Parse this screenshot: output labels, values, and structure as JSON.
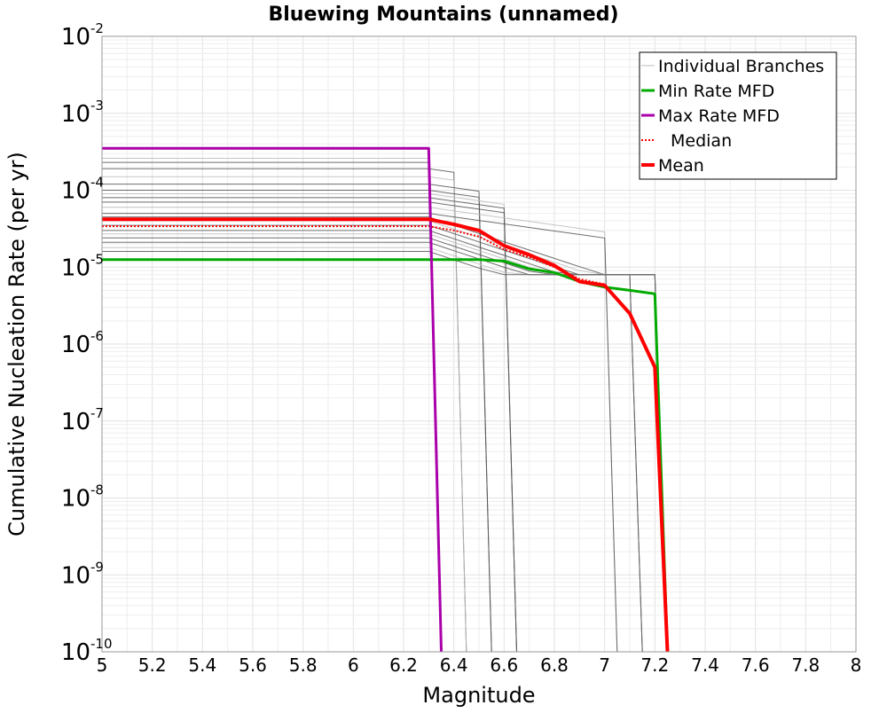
{
  "chart_data": {
    "type": "line",
    "title": "Bluewing Mountains (unnamed)",
    "xlabel": "Magnitude",
    "ylabel": "Cumulative Nucleation Rate (per yr)",
    "xlim": [
      5,
      8
    ],
    "ylim": [
      1e-10,
      0.01
    ],
    "yscale": "log",
    "grid": true,
    "legend_position": "top-right",
    "x_ticks": [
      "5",
      "5.2",
      "5.4",
      "5.6",
      "5.8",
      "6",
      "6.2",
      "6.4",
      "6.6",
      "6.8",
      "7",
      "7.2",
      "7.4",
      "7.6",
      "7.8",
      "8"
    ],
    "y_ticks": [
      {
        "base": "10",
        "exp": "-2"
      },
      {
        "base": "10",
        "exp": "-3"
      },
      {
        "base": "10",
        "exp": "-4"
      },
      {
        "base": "10",
        "exp": "-5"
      },
      {
        "base": "10",
        "exp": "-6"
      },
      {
        "base": "10",
        "exp": "-7"
      },
      {
        "base": "10",
        "exp": "-8"
      },
      {
        "base": "10",
        "exp": "-9"
      },
      {
        "base": "10",
        "exp": "-10"
      }
    ],
    "series": [
      {
        "name": "Individual Branches",
        "color": "#444444",
        "style": "thin",
        "note_values_estimated": true,
        "branches": [
          {
            "rate": 0.00026,
            "mmax": 6.3
          },
          {
            "rate": 0.00023,
            "mmax": 6.3
          },
          {
            "rate": 0.00019,
            "mmax": 6.4
          },
          {
            "rate": 0.00015,
            "mmax": 6.4
          },
          {
            "rate": 0.00012,
            "mmax": 6.5
          },
          {
            "rate": 0.0001,
            "mmax": 6.5
          },
          {
            "rate": 9e-05,
            "mmax": 6.6
          },
          {
            "rate": 8e-05,
            "mmax": 6.6
          },
          {
            "rate": 7e-05,
            "mmax": 6.6
          },
          {
            "rate": 6e-05,
            "mmax": 7.0
          },
          {
            "rate": 5e-05,
            "mmax": 7.0
          },
          {
            "rate": 4.5e-05,
            "mmax": 7.1
          },
          {
            "rate": 4e-05,
            "mmax": 7.1
          },
          {
            "rate": 3.5e-05,
            "mmax": 7.1
          },
          {
            "rate": 3e-05,
            "mmax": 7.2
          },
          {
            "rate": 2.7e-05,
            "mmax": 7.2
          },
          {
            "rate": 2.4e-05,
            "mmax": 7.2
          },
          {
            "rate": 2.1e-05,
            "mmax": 7.2
          },
          {
            "rate": 1.8e-05,
            "mmax": 7.2
          },
          {
            "rate": 1.6e-05,
            "mmax": 7.2
          }
        ]
      },
      {
        "name": "Min Rate MFD",
        "color": "#00aa00",
        "style": "solid",
        "x": [
          5.0,
          6.3,
          6.5,
          6.6,
          6.7,
          6.8,
          6.9,
          7.0,
          7.1,
          7.2,
          7.25
        ],
        "y": [
          1.25e-05,
          1.25e-05,
          1.25e-05,
          1.2e-05,
          9.5e-06,
          8.5e-06,
          6.5e-06,
          5.5e-06,
          5e-06,
          4.5e-06,
          1e-10
        ]
      },
      {
        "name": "Max Rate MFD",
        "color": "#aa00aa",
        "style": "solid",
        "x": [
          5.0,
          6.3,
          6.35
        ],
        "y": [
          0.00035,
          0.00035,
          1e-10
        ]
      },
      {
        "name": "Median",
        "color": "#ff0000",
        "style": "dotted",
        "x": [
          5.0,
          6.3,
          6.4,
          6.5,
          6.6,
          6.7,
          6.8,
          6.9,
          7.0,
          7.1,
          7.2,
          7.25
        ],
        "y": [
          3.4e-05,
          3.4e-05,
          3e-05,
          2.5e-05,
          1.7e-05,
          1.35e-05,
          1e-05,
          7e-06,
          6e-06,
          2.5e-06,
          5e-07,
          1e-10
        ]
      },
      {
        "name": "Mean",
        "color": "#ff0000",
        "style": "thick",
        "x": [
          5.0,
          6.3,
          6.4,
          6.5,
          6.6,
          6.7,
          6.8,
          6.9,
          7.0,
          7.1,
          7.2,
          7.25
        ],
        "y": [
          4.2e-05,
          4.2e-05,
          3.6e-05,
          3e-05,
          1.9e-05,
          1.45e-05,
          1.05e-05,
          6.5e-06,
          5.8e-06,
          2.5e-06,
          5e-07,
          1e-10
        ]
      }
    ]
  }
}
